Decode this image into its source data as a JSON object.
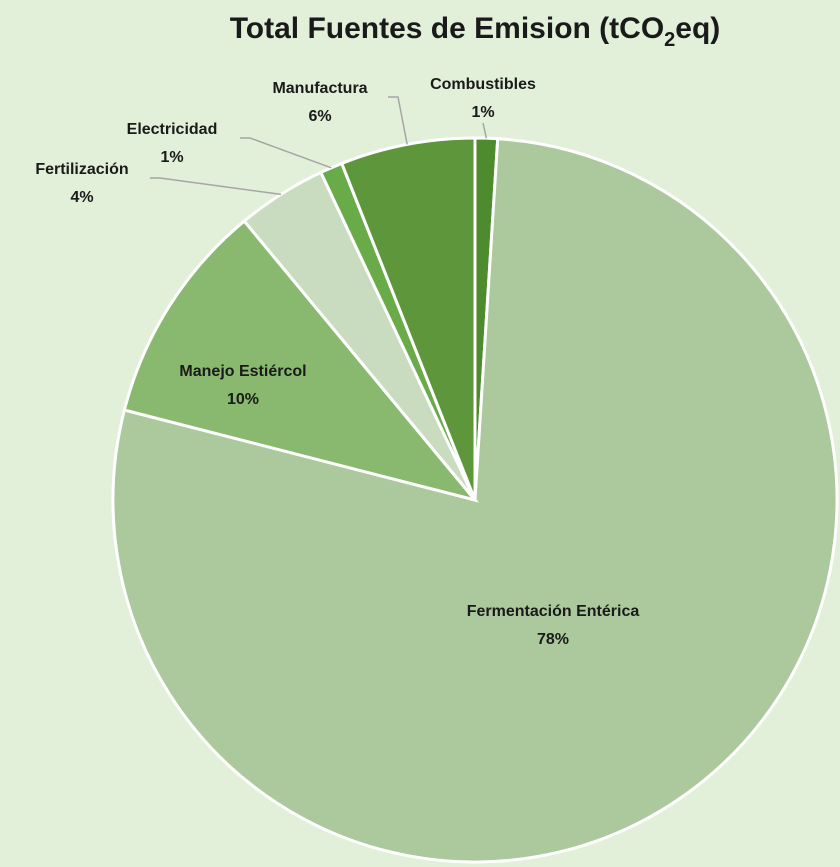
{
  "chart_data": {
    "type": "pie",
    "title": "Total Fuentes de Emision (tCO2eq)",
    "categories": [
      "Combustibles",
      "Fermentación Entérica",
      "Manejo Estiércol",
      "Fertilización",
      "Electricidad",
      "Manufactura"
    ],
    "values": [
      1,
      78,
      10,
      4,
      1,
      6
    ],
    "value_labels": [
      "1%",
      "78%",
      "10%",
      "4%",
      "1%",
      "6%"
    ],
    "colors": [
      "#4e8a2e",
      "#abc99c",
      "#88b96f",
      "#c9dcc0",
      "#6aab49",
      "#5e963b"
    ]
  }
}
